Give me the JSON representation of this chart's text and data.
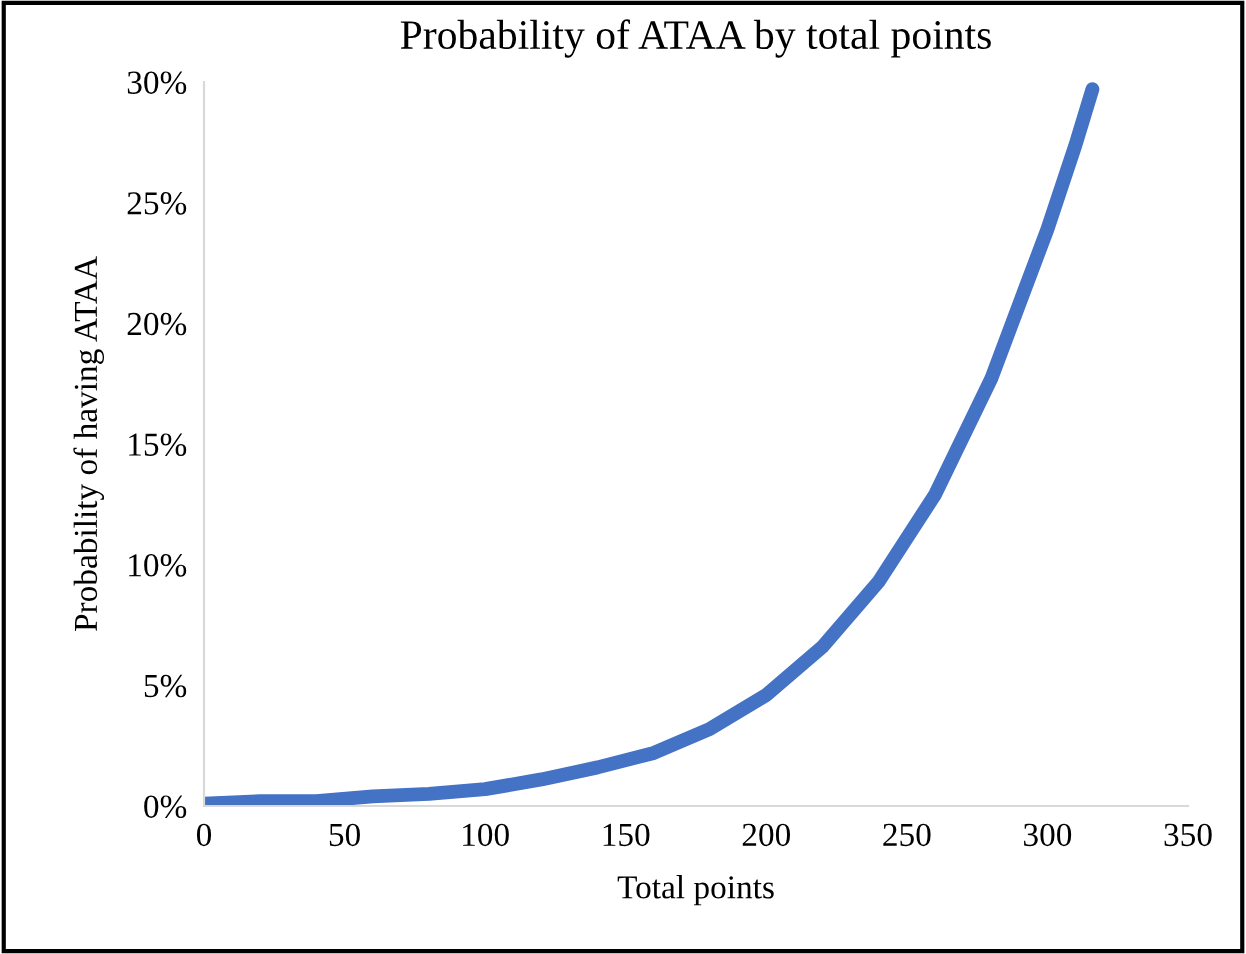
{
  "chart_data": {
    "type": "line",
    "title": "Probability of ATAA by total points",
    "xlabel": "Total points",
    "ylabel": "Probability of having ATAA",
    "series": [
      {
        "color": "#4472c4",
        "x": [
          0,
          20,
          40,
          60,
          80,
          100,
          120,
          140,
          160,
          180,
          200,
          220,
          240,
          260,
          280,
          300,
          310,
          316
        ],
        "values": [
          0.1,
          0.2,
          0.2,
          0.4,
          0.5,
          0.7,
          1.1,
          1.6,
          2.2,
          3.2,
          4.6,
          6.6,
          9.3,
          12.9,
          17.7,
          23.9,
          27.4,
          29.7
        ]
      }
    ],
    "xlim": [
      0,
      350
    ],
    "xticks": [
      0,
      50,
      100,
      150,
      200,
      250,
      300,
      350
    ],
    "ylim": [
      0,
      30
    ],
    "yticks": [
      {
        "value": 0,
        "label": "0%"
      },
      {
        "value": 5,
        "label": "5%"
      },
      {
        "value": 10,
        "label": "10%"
      },
      {
        "value": 15,
        "label": "15%"
      },
      {
        "value": 20,
        "label": "20%"
      },
      {
        "value": 25,
        "label": "25%"
      },
      {
        "value": 30,
        "label": "30%"
      }
    ],
    "grid": false,
    "line_style": "solid"
  }
}
